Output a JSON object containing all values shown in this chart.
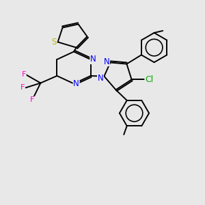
{
  "background_color": "#e8e8e8",
  "bond_color": "#000000",
  "lw": 1.4,
  "atoms": {
    "S": {
      "color": "#b8b800"
    },
    "N": {
      "color": "#0000ff"
    },
    "Cl": {
      "color": "#00aa00"
    },
    "F": {
      "color": "#ff00cc"
    }
  },
  "xlim": [
    0,
    10
  ],
  "ylim": [
    0,
    10
  ]
}
